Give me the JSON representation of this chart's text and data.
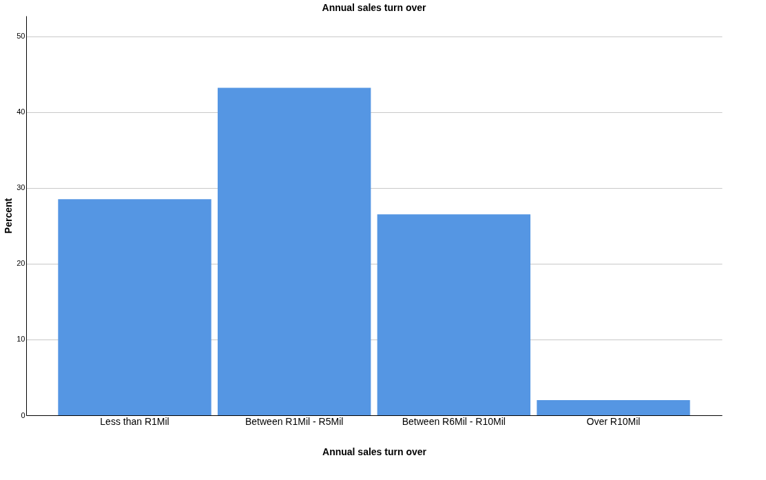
{
  "chart_data": {
    "type": "bar",
    "title": "Annual sales turn over",
    "xlabel": "Annual sales turn over",
    "ylabel": "Percent",
    "categories": [
      "Less than R1Mil",
      "Between R1Mil - R5Mil",
      "Between R6Mil - R10Mil",
      "Over R10Mil"
    ],
    "values": [
      28.5,
      43.2,
      26.5,
      2.0
    ],
    "color": "#5596e3",
    "ylim": [
      0,
      52.7
    ],
    "yticks": [
      0,
      10,
      20,
      30,
      40,
      50
    ],
    "grid": "y",
    "legend": false
  }
}
